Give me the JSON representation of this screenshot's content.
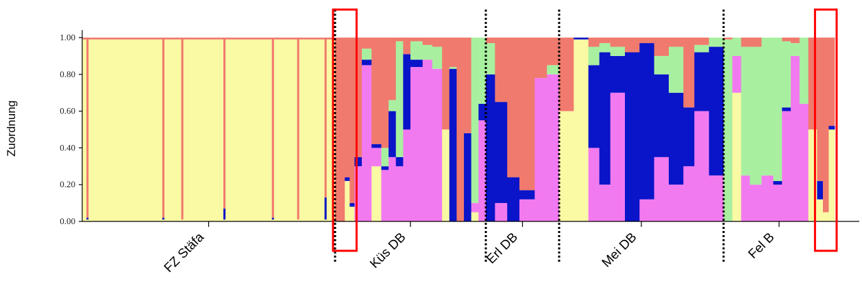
{
  "chart_data": {
    "type": "bar",
    "subtype": "stacked-100-admixture",
    "title": "",
    "xlabel": "",
    "ylabel": "Zuordnung",
    "ylim": [
      0,
      1
    ],
    "yticks": [
      "0.00",
      "0.20",
      "0.40",
      "0.60",
      "0.80",
      "1.00"
    ],
    "grid": false,
    "legend": "none",
    "colors": {
      "yellow": "#FAF9A4",
      "salmon": "#EC8272",
      "red": "#F07A6E",
      "pink": "#F27AF0",
      "blue": "#0A14C8",
      "green": "#A8F0A0"
    },
    "stack_order": [
      "yellow",
      "pink",
      "blue",
      "green",
      "red"
    ],
    "separator_color": "#000000",
    "highlight_color": "#FF0000",
    "groups": [
      {
        "name": "FZ Stäfa",
        "clusters": [
          {
            "n": 2,
            "values": [
              0.99,
              0,
              0,
              0,
              0.01
            ]
          },
          {
            "n": 1,
            "values": [
              0.01,
              0,
              0.01,
              0,
              0.98
            ]
          },
          {
            "n": 35,
            "values": [
              0.99,
              0,
              0,
              0,
              0.01
            ]
          },
          {
            "n": 1,
            "values": [
              0.01,
              0,
              0.01,
              0,
              0.98
            ]
          },
          {
            "n": 8,
            "values": [
              0.99,
              0,
              0,
              0,
              0.01
            ]
          },
          {
            "n": 1,
            "values": [
              0.01,
              0,
              0,
              0,
              0.99
            ]
          },
          {
            "n": 19,
            "values": [
              0.99,
              0,
              0,
              0,
              0.01
            ]
          },
          {
            "n": 1,
            "values": [
              0.01,
              0,
              0.06,
              0,
              0.93
            ]
          },
          {
            "n": 22,
            "values": [
              0.99,
              0,
              0,
              0,
              0.01
            ]
          },
          {
            "n": 1,
            "values": [
              0.01,
              0,
              0.01,
              0,
              0.98
            ]
          },
          {
            "n": 11,
            "values": [
              0.99,
              0,
              0,
              0,
              0.01
            ]
          },
          {
            "n": 1,
            "values": [
              0.01,
              0,
              0,
              0,
              0.99
            ]
          },
          {
            "n": 12,
            "values": [
              0.99,
              0,
              0,
              0,
              0.01
            ]
          },
          {
            "n": 1,
            "values": [
              0.01,
              0,
              0.12,
              0,
              0.87
            ]
          },
          {
            "n": 4,
            "values": [
              0.99,
              0,
              0,
              0,
              0.01
            ]
          }
        ]
      },
      {
        "name": "Küs DB",
        "clusters": [
          {
            "n": 4,
            "values": [
              0.0,
              0.0,
              0.0,
              0.0,
              1.0
            ]
          },
          {
            "n": 2,
            "values": [
              0.22,
              0.0,
              0.02,
              0.0,
              0.76
            ]
          },
          {
            "n": 2,
            "values": [
              0.08,
              0.0,
              0.02,
              0.0,
              0.9
            ]
          },
          {
            "n": 3,
            "values": [
              0.0,
              0.3,
              0.05,
              0.0,
              0.65
            ]
          },
          {
            "n": 4,
            "values": [
              0.0,
              0.85,
              0.03,
              0.06,
              0.06
            ]
          },
          {
            "n": 4,
            "values": [
              0.3,
              0.1,
              0.02,
              0.0,
              0.58
            ]
          },
          {
            "n": 3,
            "values": [
              0.0,
              0.28,
              0.02,
              0.1,
              0.6
            ]
          },
          {
            "n": 3,
            "values": [
              0.0,
              0.35,
              0.25,
              0.06,
              0.34
            ]
          },
          {
            "n": 3,
            "values": [
              0.0,
              0.3,
              0.05,
              0.63,
              0.02
            ]
          },
          {
            "n": 3,
            "values": [
              0.0,
              0.5,
              0.41,
              0.0,
              0.09
            ]
          },
          {
            "n": 5,
            "values": [
              0.0,
              0.84,
              0.04,
              0.1,
              0.02
            ]
          },
          {
            "n": 4,
            "values": [
              0.0,
              0.88,
              0.0,
              0.08,
              0.04
            ]
          },
          {
            "n": 4,
            "values": [
              0.0,
              0.83,
              0.0,
              0.12,
              0.05
            ]
          },
          {
            "n": 3,
            "values": [
              0.5,
              0.0,
              0.0,
              0.0,
              0.5
            ]
          },
          {
            "n": 3,
            "values": [
              0.0,
              0.0,
              0.83,
              0.01,
              0.16
            ]
          },
          {
            "n": 3,
            "values": [
              0.0,
              0.0,
              0.0,
              0.0,
              1.0
            ]
          },
          {
            "n": 3,
            "values": [
              0.0,
              0.0,
              0.48,
              0.0,
              0.52
            ]
          },
          {
            "n": 3,
            "values": [
              0.05,
              0.05,
              0.0,
              0.9,
              0.0
            ]
          },
          {
            "n": 3,
            "values": [
              0.0,
              0.55,
              0.09,
              0.36,
              0.0
            ]
          }
        ]
      },
      {
        "name": "Erl DB",
        "clusters": [
          {
            "n": 3,
            "values": [
              0.0,
              0.0,
              0.8,
              0.17,
              0.03
            ]
          },
          {
            "n": 4,
            "values": [
              0.0,
              0.1,
              0.55,
              0.0,
              0.35
            ]
          },
          {
            "n": 4,
            "values": [
              0.0,
              0.0,
              0.24,
              0.0,
              0.76
            ]
          },
          {
            "n": 5,
            "values": [
              0.0,
              0.12,
              0.05,
              0.0,
              0.83
            ]
          },
          {
            "n": 4,
            "values": [
              0.0,
              0.78,
              0.0,
              0.0,
              0.22
            ]
          },
          {
            "n": 4,
            "values": [
              0.0,
              0.8,
              0.0,
              0.05,
              0.15
            ]
          }
        ]
      },
      {
        "name": "Mei DB",
        "clusters": [
          {
            "n": 4,
            "values": [
              0.6,
              0.0,
              0.0,
              0.0,
              0.4
            ]
          },
          {
            "n": 4,
            "values": [
              0.99,
              0.0,
              0.01,
              0.0,
              0.0
            ]
          },
          {
            "n": 3,
            "values": [
              0.0,
              0.4,
              0.45,
              0.1,
              0.05
            ]
          },
          {
            "n": 3,
            "values": [
              0.0,
              0.2,
              0.72,
              0.05,
              0.03
            ]
          },
          {
            "n": 4,
            "values": [
              0.0,
              0.7,
              0.2,
              0.05,
              0.05
            ]
          },
          {
            "n": 4,
            "values": [
              0.0,
              0.0,
              0.92,
              0.0,
              0.08
            ]
          },
          {
            "n": 4,
            "values": [
              0.0,
              0.12,
              0.85,
              0.0,
              0.03
            ]
          },
          {
            "n": 4,
            "values": [
              0.0,
              0.35,
              0.45,
              0.1,
              0.1
            ]
          },
          {
            "n": 4,
            "values": [
              0.0,
              0.2,
              0.5,
              0.25,
              0.05
            ]
          },
          {
            "n": 3,
            "values": [
              0.0,
              0.3,
              0.32,
              0.0,
              0.38
            ]
          },
          {
            "n": 4,
            "values": [
              0.0,
              0.6,
              0.32,
              0.04,
              0.04
            ]
          },
          {
            "n": 4,
            "values": [
              0.0,
              0.25,
              0.7,
              0.05,
              0.0
            ]
          }
        ]
      },
      {
        "name": "Fel B",
        "clusters": [
          {
            "n": 3,
            "values": [
              0.0,
              0.0,
              0.0,
              0.99,
              0.01
            ]
          },
          {
            "n": 3,
            "values": [
              0.7,
              0.2,
              0.0,
              0.1,
              0.0
            ]
          },
          {
            "n": 3,
            "values": [
              0.0,
              0.25,
              0.0,
              0.7,
              0.05
            ]
          },
          {
            "n": 4,
            "values": [
              0.0,
              0.2,
              0.0,
              0.75,
              0.05
            ]
          },
          {
            "n": 4,
            "values": [
              0.0,
              0.25,
              0.0,
              0.75,
              0.0
            ]
          },
          {
            "n": 3,
            "values": [
              0.0,
              0.2,
              0.02,
              0.78,
              0.0
            ]
          },
          {
            "n": 3,
            "values": [
              0.0,
              0.6,
              0.02,
              0.36,
              0.02
            ]
          },
          {
            "n": 3,
            "values": [
              0.0,
              0.9,
              0.0,
              0.07,
              0.03
            ]
          },
          {
            "n": 3,
            "values": [
              0.0,
              0.64,
              0.0,
              0.36,
              0.0
            ]
          },
          {
            "n": 3,
            "values": [
              0.5,
              0.0,
              0.0,
              0.0,
              0.5
            ]
          },
          {
            "n": 2,
            "values": [
              0.12,
              0.0,
              0.1,
              0.0,
              0.78
            ]
          },
          {
            "n": 2,
            "values": [
              0.05,
              0.0,
              0.0,
              0.0,
              0.95
            ]
          },
          {
            "n": 2,
            "values": [
              0.5,
              0.0,
              0.02,
              0.0,
              0.48
            ]
          }
        ]
      }
    ],
    "highlighted_ranges": [
      {
        "group": "Küs DB",
        "clusters": [
          0,
          2
        ]
      },
      {
        "group": "Fel B",
        "clusters": [
          10,
          12
        ]
      }
    ]
  }
}
